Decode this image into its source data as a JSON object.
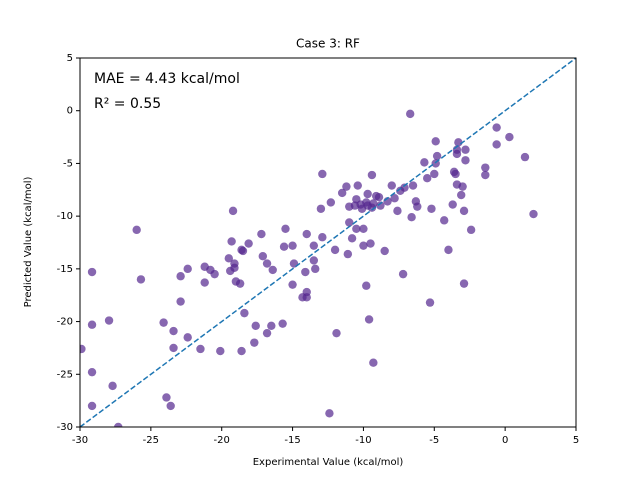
{
  "chart_data": {
    "type": "scatter",
    "title": "Case 3: RF",
    "x_label": "Experimental Value (kcal/mol)",
    "y_label": "Predicted Value (kcal/mol)",
    "annotations": [
      "MAE = 4.43 kcal/mol",
      "R² = 0.55"
    ],
    "xlim": [
      -30,
      5
    ],
    "ylim": [
      -30,
      5
    ],
    "xticks": [
      -30,
      -25,
      -20,
      -15,
      -10,
      -5,
      0,
      5
    ],
    "yticks": [
      -30,
      -25,
      -20,
      -15,
      -10,
      -5,
      0,
      5
    ],
    "color": "#54278f",
    "identity_line": true,
    "identity_color": "#1f77b4",
    "x": [
      -29.15,
      -29.15,
      -29.9,
      -29.15,
      -29.15,
      -27.95,
      -27.7,
      -26.0,
      -25.7,
      -24.1,
      -23.9,
      -23.6,
      -23.4,
      -23.4,
      -22.9,
      -22.9,
      -22.4,
      -22.4,
      -21.5,
      -21.2,
      -21.2,
      -20.8,
      -20.5,
      -20.1,
      -19.5,
      -19.4,
      -19.3,
      -19.2,
      -19.1,
      -19.1,
      -19.0,
      -18.7,
      -18.6,
      -18.6,
      -18.5,
      -18.4,
      -18.1,
      -17.7,
      -17.6,
      -17.2,
      -17.1,
      -16.8,
      -16.8,
      -16.5,
      -16.4,
      -15.7,
      -15.6,
      -15.5,
      -15.0,
      -15.0,
      -14.9,
      -14.3,
      -14.1,
      -14.0,
      -14.0,
      -14.0,
      -13.5,
      -13.5,
      -13.4,
      -13.0,
      -12.9,
      -12.9,
      -12.4,
      -12.3,
      -12.0,
      -11.9,
      -11.5,
      -11.2,
      -11.1,
      -11.0,
      -11.0,
      -10.8,
      -10.6,
      -10.5,
      -10.5,
      -10.4,
      -10.2,
      -10.1,
      -10.0,
      -10.0,
      -9.8,
      -9.8,
      -9.7,
      -9.7,
      -9.6,
      -9.5,
      -9.4,
      -9.4,
      -9.3,
      -9.3,
      -9.1,
      -8.9,
      -8.8,
      -8.5,
      -8.3,
      -8.0,
      -7.8,
      -7.6,
      -7.4,
      -7.2,
      -7.1,
      -6.7,
      -6.6,
      -6.5,
      -6.3,
      -6.2,
      -5.7,
      -5.5,
      -5.3,
      -5.2,
      -5.0,
      -4.9,
      -4.9,
      -4.8,
      -4.3,
      -4.0,
      -3.7,
      -3.6,
      -3.5,
      -3.4,
      -3.4,
      -3.4,
      -3.3,
      -3.1,
      -3.0,
      -2.9,
      -2.9,
      -2.8,
      -2.8,
      -2.4,
      -1.4,
      -1.4,
      -0.6,
      -0.6,
      0.3,
      1.4,
      2.0,
      -27.3
    ],
    "values": [
      -15.3,
      -20.3,
      -22.6,
      -24.8,
      -28.0,
      -19.9,
      -26.1,
      -11.3,
      -16.0,
      -20.1,
      -27.2,
      -28.0,
      -20.9,
      -22.5,
      -18.1,
      -15.7,
      -15.0,
      -21.5,
      -22.6,
      -14.8,
      -16.3,
      -15.1,
      -15.5,
      -22.8,
      -14.0,
      -15.2,
      -12.4,
      -9.5,
      -14.5,
      -14.9,
      -16.2,
      -16.4,
      -22.8,
      -13.2,
      -13.3,
      -19.2,
      -12.6,
      -22.0,
      -20.4,
      -11.7,
      -13.8,
      -14.5,
      -21.1,
      -20.4,
      -15.1,
      -20.2,
      -12.9,
      -11.2,
      -12.8,
      -16.5,
      -14.5,
      -17.7,
      -15.3,
      -17.2,
      -17.7,
      -11.7,
      -12.8,
      -14.2,
      -15.0,
      -9.3,
      -12.0,
      -6.0,
      -28.7,
      -8.7,
      -13.2,
      -21.1,
      -7.8,
      -7.2,
      -13.6,
      -9.1,
      -10.6,
      -12.1,
      -9.0,
      -8.4,
      -11.2,
      -7.1,
      -8.9,
      -9.3,
      -11.2,
      -12.8,
      -16.6,
      -8.7,
      -7.9,
      -9.0,
      -19.8,
      -12.6,
      -9.2,
      -6.1,
      -23.9,
      -8.8,
      -8.1,
      -8.2,
      -9.0,
      -13.3,
      -8.6,
      -7.1,
      -8.3,
      -9.5,
      -7.6,
      -15.5,
      -7.3,
      -0.3,
      -10.1,
      -7.1,
      -8.6,
      -9.1,
      -4.9,
      -6.4,
      -18.2,
      -9.3,
      -6.0,
      -2.9,
      -5.0,
      -4.3,
      -10.4,
      -13.2,
      -8.9,
      -5.8,
      -6.0,
      -4.1,
      -7.0,
      -3.7,
      -3.0,
      -8.0,
      -7.2,
      -16.4,
      -9.5,
      -4.7,
      -3.7,
      -11.3,
      -5.4,
      -6.1,
      -1.6,
      -3.2,
      -2.5,
      -4.4,
      -9.8,
      -30.0
    ]
  }
}
